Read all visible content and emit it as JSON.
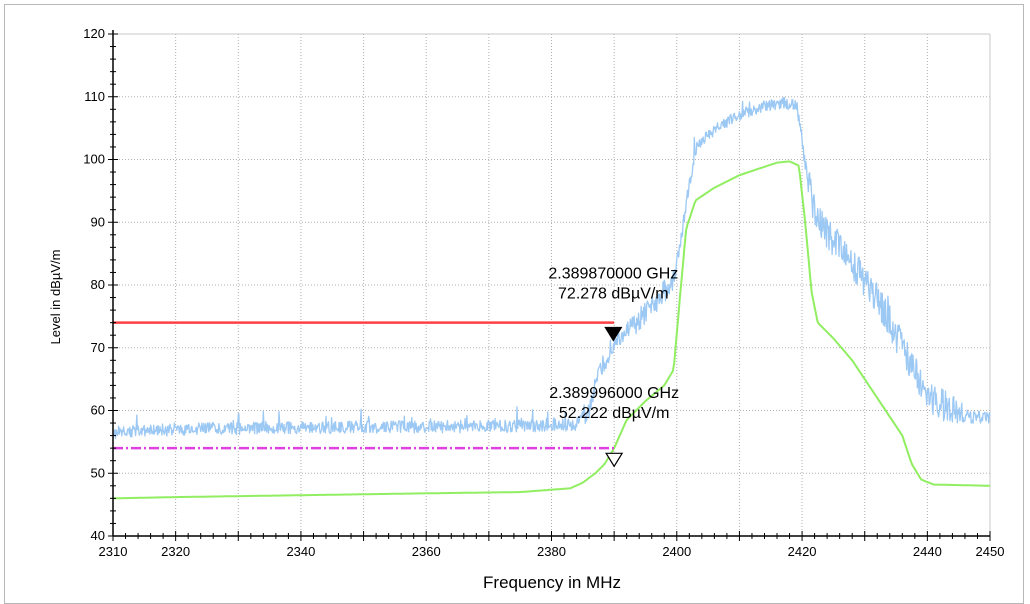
{
  "chart_data": {
    "type": "line",
    "xlabel": "Frequency in MHz",
    "ylabel": "Level in dBµV/m",
    "xlim": [
      2310,
      2450
    ],
    "ylim": [
      40,
      120
    ],
    "x_tick_values": [
      2310,
      2320,
      2340,
      2360,
      2380,
      2400,
      2420,
      2440,
      2450
    ],
    "x_tick_labels": [
      "2310",
      "2320",
      "2340",
      "2360",
      "2380",
      "2400",
      "2420",
      "2440",
      "2450"
    ],
    "y_tick_values": [
      40,
      50,
      60,
      70,
      80,
      90,
      100,
      110,
      120
    ],
    "y_tick_labels": [
      "40",
      "50",
      "60",
      "70",
      "80",
      "90",
      "100",
      "110",
      "120"
    ],
    "grid": true,
    "series": [
      {
        "color": "#9cc8f4",
        "noise": true,
        "x": [
          2310,
          2320,
          2340,
          2360,
          2375,
          2384,
          2386,
          2388,
          2390,
          2393,
          2396,
          2398,
          2399.5,
          2400.5,
          2401.5,
          2403,
          2405,
          2408,
          2411,
          2414,
          2417,
          2419,
          2420,
          2421,
          2422,
          2425,
          2428,
          2432,
          2436,
          2440,
          2443,
          2446,
          2450
        ],
        "y": [
          56.5,
          57.0,
          57.3,
          57.4,
          57.5,
          57.8,
          60.5,
          66.5,
          71.0,
          73.5,
          76.5,
          79.0,
          81.0,
          86.0,
          93.0,
          101.5,
          104.0,
          106.0,
          107.5,
          108.5,
          109.0,
          108.5,
          104.0,
          96.5,
          91.0,
          87.0,
          83.5,
          78.0,
          70.0,
          62.0,
          60.5,
          59.0,
          58.8
        ]
      },
      {
        "color": "#90ee60",
        "noise": false,
        "x": [
          2310,
          2320,
          2340,
          2360,
          2375,
          2383,
          2385,
          2387,
          2388.5,
          2390,
          2392,
          2395,
          2398,
          2399.5,
          2400.5,
          2401.5,
          2403,
          2406,
          2410,
          2413,
          2416,
          2418,
          2419.5,
          2420.5,
          2421.5,
          2422.5,
          2425,
          2428,
          2432,
          2436,
          2437.5,
          2439,
          2441,
          2450
        ],
        "y": [
          46.0,
          46.2,
          46.5,
          46.8,
          47.0,
          47.6,
          48.5,
          50.0,
          51.5,
          54.0,
          58.5,
          61.5,
          64.0,
          66.5,
          78.0,
          89.0,
          93.5,
          95.5,
          97.5,
          98.5,
          99.5,
          99.7,
          99.0,
          90.0,
          79.0,
          74.0,
          71.5,
          68.0,
          62.0,
          56.0,
          51.5,
          49.0,
          48.2,
          48.0
        ]
      }
    ],
    "limit_lines": [
      {
        "y": 74,
        "x_end": 2390,
        "color": "#ff4040",
        "style": "solid"
      },
      {
        "y": 54,
        "x_end": 2390,
        "color": "#e040e0",
        "style": "dashdot"
      }
    ],
    "markers": [
      {
        "x": 2389.87,
        "y": 72.278,
        "filled": true,
        "label_line1": "2.389870000 GHz",
        "label_line2": "72.278 dBµV/m",
        "label_anchor_y": 81.0
      },
      {
        "x": 2390.0,
        "y": 52.222,
        "filled": false,
        "label_line1": "2.389996000 GHz",
        "label_line2": "52.222 dBµV/m",
        "label_anchor_y": 62.0
      }
    ]
  }
}
